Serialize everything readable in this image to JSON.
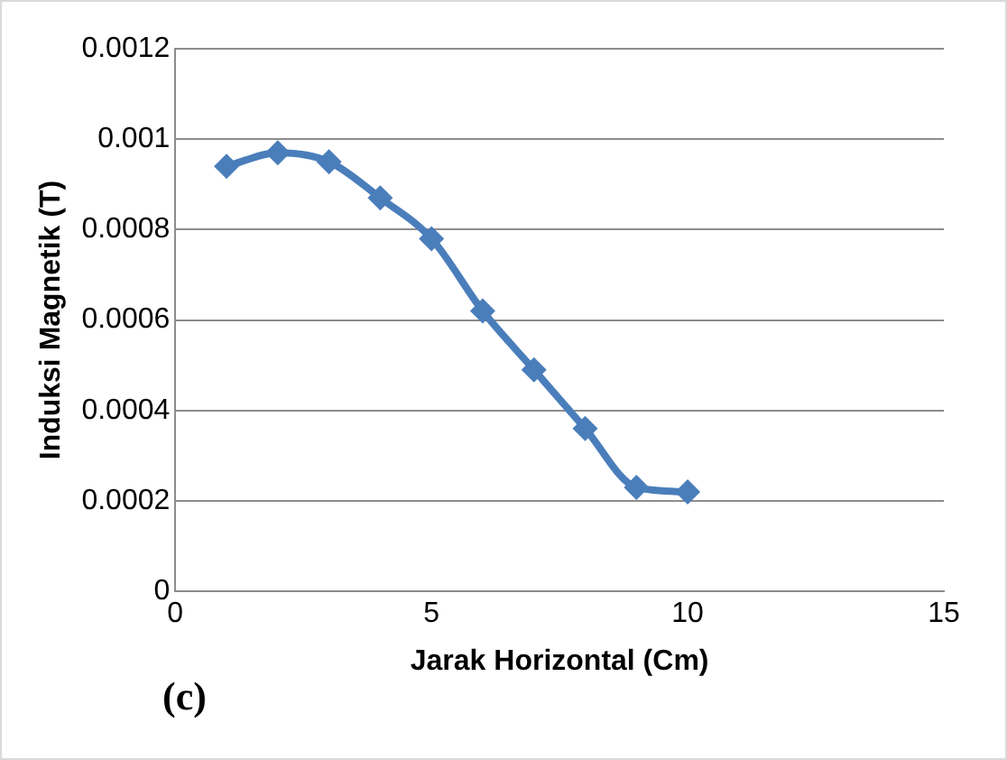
{
  "chart_data": {
    "type": "line",
    "xlabel": "Jarak Horizontal (Cm)",
    "ylabel": "Induksi Magnetik (T)",
    "annotations": [
      "(c)"
    ],
    "x": [
      1,
      2,
      3,
      4,
      5,
      6,
      7,
      8,
      9,
      10
    ],
    "series": [
      {
        "color": "#4a7ebb",
        "values": [
          0.00094,
          0.00097,
          0.00095,
          0.00087,
          0.00078,
          0.00062,
          0.00049,
          0.00036,
          0.00023,
          0.00022
        ]
      }
    ],
    "xlim": [
      0,
      15
    ],
    "xticks": [
      0,
      5,
      10,
      15
    ],
    "ylim": [
      0,
      0.0012
    ],
    "yticks": [
      0,
      0.0002,
      0.0004,
      0.0006,
      0.0008,
      0.001,
      0.0012
    ],
    "grid": "y",
    "legend": false,
    "marker": "diamond",
    "line_style": "solid"
  }
}
